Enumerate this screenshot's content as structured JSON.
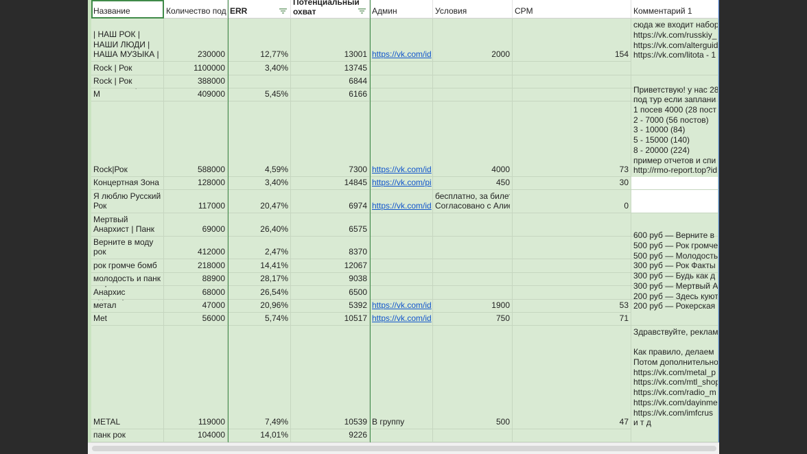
{
  "headers": [
    "Название",
    "Количество под",
    "ERR",
    "Потенциальный охват",
    "Админ",
    "Условия",
    "CPM",
    "Комментарий 1"
  ],
  "rows": [
    {
      "cells": [
        "| НАШ РОК | НАШИ ЛЮДИ | НАША МУЗЫКА |",
        "230000",
        "12,77%",
        "13001",
        "https://vk.com/id",
        "2000",
        "154"
      ],
      "comment": [
        "сюда же входит набор",
        "https://vk.com/russkiy_",
        "https://vk.com/alterguid",
        "https://vk.com/litota - 1"
      ]
    },
    {
      "cells": [
        "Rock | Рок",
        "1100000",
        "3,40%",
        "13745",
        "",
        "",
        ""
      ],
      "comment": []
    },
    {
      "cells": [
        "Rock | Рок",
        "388000",
        "",
        "6844",
        "",
        "",
        ""
      ],
      "comment": []
    },
    {
      "cells": [
        "Rock Mem | Рок М",
        "409000",
        "5,45%",
        "6166",
        "",
        "",
        ""
      ],
      "comment": []
    },
    {
      "cells": [
        "Rock|Рок",
        "588000",
        "4,59%",
        "7300",
        "https://vk.com/id",
        "4000",
        "73"
      ],
      "comment": [
        "Приветствую! у нас 28",
        "под тур если заплани",
        "1 посев 4000 (28 пост",
        "2 - 7000 (56 постов)",
        "3 - 10000 (84)",
        "5 - 15000 (140)",
        "8 - 20000 (224)",
        "пример отчетов и спи",
        "http://rmo-report.top?id"
      ]
    },
    {
      "cells": [
        "Концертная Зона",
        "128000",
        "3,40%",
        "14845",
        "https://vk.com/pi",
        "450",
        "30"
      ],
      "comment": []
    },
    {
      "cells": [
        "Я люблю Русский Рок",
        "117000",
        "20,47%",
        "6974",
        "https://vk.com/id",
        "бесплатно, за билет\nСогласовано с Алие",
        "0"
      ],
      "comment": []
    },
    {
      "cells": [
        "Мертвый Анархист | Панк",
        "69000",
        "26,40%",
        "6575",
        "",
        "",
        ""
      ],
      "comment": []
    },
    {
      "cells": [
        "Верните в моду рок",
        "412000",
        "2,47%",
        "8370",
        "",
        "",
        ""
      ],
      "comment": []
    },
    {
      "cells": [
        "рок громче бомб",
        "218000",
        "14,41%",
        "12067",
        "",
        "",
        ""
      ],
      "comment": []
    },
    {
      "cells": [
        "молодость и панк",
        "88900",
        "28,17%",
        "9038",
        "",
        "",
        ""
      ],
      "comment": []
    },
    {
      "cells": [
        "Мертвый Анархис",
        "68000",
        "26,54%",
        "6500",
        "",
        "",
        ""
      ],
      "comment": []
    },
    {
      "cells": [
        "Здесь куют метал",
        "47000",
        "20,96%",
        "5392",
        "https://vk.com/id",
        "1900",
        "53"
      ],
      "comment": [
        "600 руб — Верните в",
        "500 руб — Рок громче",
        "500 руб — Молодость",
        "300 руб — Рок Факты",
        "300 руб — Будь как д",
        "300 руб — Мертвый А",
        "200 руб — Здесь куют",
        "200 руб — Рокерская"
      ]
    },
    {
      "cells": [
        "Melodic Death Met",
        "56000",
        "5,74%",
        "10517",
        "https://vk.com/id",
        "750",
        "71"
      ],
      "comment": []
    },
    {
      "cells": [
        "METAL",
        "119000",
        "7,49%",
        "10539",
        "В группу",
        "500",
        "47"
      ],
      "comment": [
        "Здравствуйте, реклам",
        " ",
        "Как правило, делаем",
        "Потом дополнительно",
        "https://vk.com/metal_p",
        "https://vk.com/mtl_shop",
        "https://vk.com/radio_m",
        "https://vk.com/dayinme",
        "https://vk.com/imfcrus",
        "и т д"
      ]
    },
    {
      "cells": [
        "панк рок",
        "104000",
        "14,01%",
        "9226",
        "",
        "",
        ""
      ],
      "comment": []
    }
  ],
  "colors": {
    "cell_bg": "#d9ead3",
    "link": "#1155cc",
    "accent_line": "#3f8a48"
  }
}
